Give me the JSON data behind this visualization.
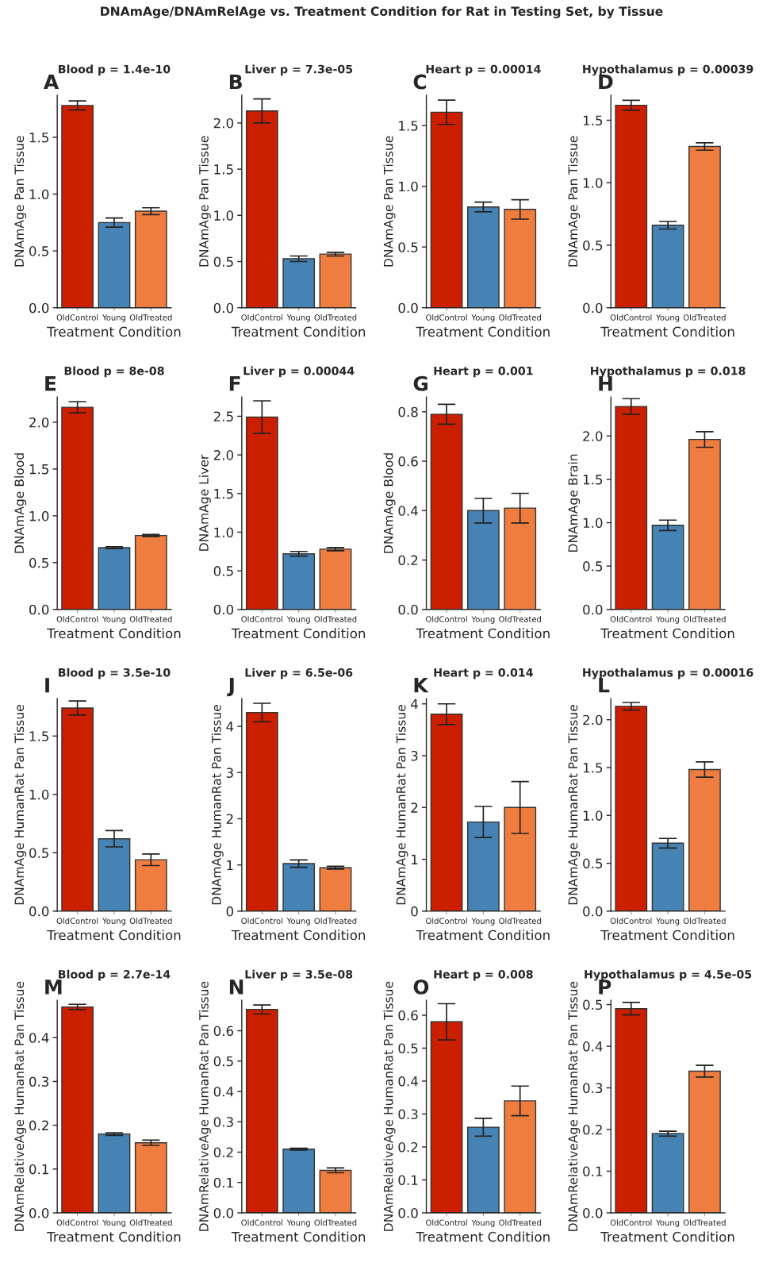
{
  "chart_data": [
    {
      "type": "bar",
      "title": "Blood p = 1.4e-10",
      "xlabel": "Treatment Condition",
      "ylabel": "DNAmAge Pan Tissue",
      "categories": [
        "OldControl",
        "Young",
        "OldTreated"
      ],
      "values": [
        1.78,
        0.75,
        0.85
      ],
      "errors": [
        0.04,
        0.04,
        0.03
      ],
      "colors": [
        "#cc1f00",
        "#4682b4",
        "#f07d40"
      ],
      "ylim": [
        0,
        1.87
      ],
      "yticks": [
        {
          "value": 0,
          "label": "0.0"
        },
        0.5,
        {
          "value": 1,
          "label": "1.0"
        },
        1.5
      ],
      "annotations": [
        "DNAmAge/DNAmRelAge vs. Treatment Condition for Rat in Testing Set, by Tissue",
        "A"
      ]
    },
    {
      "type": "bar",
      "title": "Liver p = 7.3e-05",
      "xlabel": "Treatment Condition",
      "ylabel": "DNAmAge Pan Tissue",
      "categories": [
        "OldControl",
        "Young",
        "OldTreated"
      ],
      "values": [
        2.13,
        0.53,
        0.58
      ],
      "errors": [
        0.13,
        0.03,
        0.02
      ],
      "colors": [
        "#cc1f00",
        "#4682b4",
        "#f07d40"
      ],
      "ylim": [
        0,
        2.3
      ],
      "yticks": [
        {
          "value": 0,
          "label": "0.0"
        },
        0.5,
        {
          "value": 1,
          "label": "1.0"
        },
        1.5,
        {
          "value": 2,
          "label": "2.0"
        }
      ],
      "annotations": [
        "B"
      ]
    },
    {
      "type": "bar",
      "title": "Heart p = 0.00014",
      "xlabel": "Treatment Condition",
      "ylabel": "DNAmAge Pan Tissue",
      "categories": [
        "OldControl",
        "Young",
        "OldTreated"
      ],
      "values": [
        1.61,
        0.83,
        0.81
      ],
      "errors": [
        0.1,
        0.04,
        0.08
      ],
      "colors": [
        "#cc1f00",
        "#4682b4",
        "#f07d40"
      ],
      "ylim": [
        0,
        1.75
      ],
      "yticks": [
        {
          "value": 0,
          "label": "0.0"
        },
        0.5,
        {
          "value": 1,
          "label": "1.0"
        },
        1.5
      ],
      "annotations": [
        "C"
      ]
    },
    {
      "type": "bar",
      "title": "Hypothalamus p = 0.00039",
      "xlabel": "Treatment Condition",
      "ylabel": "DNAmAge Pan Tissue",
      "categories": [
        "OldControl",
        "Young",
        "OldTreated"
      ],
      "values": [
        1.62,
        0.66,
        1.29
      ],
      "errors": [
        0.04,
        0.03,
        0.03
      ],
      "colors": [
        "#cc1f00",
        "#4682b4",
        "#f07d40"
      ],
      "ylim": [
        0,
        1.7
      ],
      "yticks": [
        {
          "value": 0,
          "label": "0.0"
        },
        0.5,
        {
          "value": 1,
          "label": "1.0"
        },
        1.5
      ],
      "annotations": [
        "D"
      ]
    },
    {
      "type": "bar",
      "title": "Blood p = 8e-08",
      "xlabel": "Treatment Condition",
      "ylabel": "DNAmAge Blood",
      "categories": [
        "OldControl",
        "Young",
        "OldTreated"
      ],
      "values": [
        2.16,
        0.66,
        0.79
      ],
      "errors": [
        0.06,
        0.01,
        0.01
      ],
      "colors": [
        "#cc1f00",
        "#4682b4",
        "#f07d40"
      ],
      "ylim": [
        0,
        2.27
      ],
      "yticks": [
        {
          "value": 0,
          "label": "0.0"
        },
        0.5,
        {
          "value": 1,
          "label": "1.0"
        },
        1.5,
        {
          "value": 2,
          "label": "2.0"
        }
      ],
      "annotations": [
        "E"
      ]
    },
    {
      "type": "bar",
      "title": "Liver p = 0.00044",
      "xlabel": "Treatment Condition",
      "ylabel": "DNAmAge Liver",
      "categories": [
        "OldControl",
        "Young",
        "OldTreated"
      ],
      "values": [
        2.49,
        0.72,
        0.78
      ],
      "errors": [
        0.21,
        0.03,
        0.02
      ],
      "colors": [
        "#cc1f00",
        "#4682b4",
        "#f07d40"
      ],
      "ylim": [
        0,
        2.75
      ],
      "yticks": [
        {
          "value": 0,
          "label": "0.0"
        },
        0.5,
        {
          "value": 1,
          "label": "1.0"
        },
        1.5,
        {
          "value": 2,
          "label": "2.0"
        },
        2.5
      ],
      "annotations": [
        "F"
      ]
    },
    {
      "type": "bar",
      "title": "Heart p = 0.001",
      "xlabel": "Treatment Condition",
      "ylabel": "DNAmAge Blood",
      "categories": [
        "OldControl",
        "Young",
        "OldTreated"
      ],
      "values": [
        0.79,
        0.4,
        0.41
      ],
      "errors": [
        0.04,
        0.05,
        0.06
      ],
      "colors": [
        "#cc1f00",
        "#4682b4",
        "#f07d40"
      ],
      "ylim": [
        0,
        0.86
      ],
      "yticks": [
        {
          "value": 0,
          "label": "0.0"
        },
        0.2,
        0.4,
        0.6,
        0.8
      ],
      "annotations": [
        "G"
      ]
    },
    {
      "type": "bar",
      "title": "Hypothalamus p = 0.018",
      "xlabel": "Treatment Condition",
      "ylabel": "DNAmAge Brain",
      "categories": [
        "OldControl",
        "Young",
        "OldTreated"
      ],
      "values": [
        2.34,
        0.97,
        1.96
      ],
      "errors": [
        0.09,
        0.06,
        0.09
      ],
      "colors": [
        "#cc1f00",
        "#4682b4",
        "#f07d40"
      ],
      "ylim": [
        0,
        2.45
      ],
      "yticks": [
        {
          "value": 0,
          "label": "0.0"
        },
        0.5,
        {
          "value": 1,
          "label": "1.0"
        },
        1.5,
        {
          "value": 2,
          "label": "2.0"
        }
      ],
      "annotations": [
        "H"
      ]
    },
    {
      "type": "bar",
      "title": "Blood p = 3.5e-10",
      "xlabel": "Treatment Condition",
      "ylabel": "DNAmAge HumanRat Pan Tissue",
      "categories": [
        "OldControl",
        "Young",
        "OldTreated"
      ],
      "values": [
        1.74,
        0.62,
        0.44
      ],
      "errors": [
        0.06,
        0.07,
        0.05
      ],
      "colors": [
        "#cc1f00",
        "#4682b4",
        "#f07d40"
      ],
      "ylim": [
        0,
        1.82
      ],
      "yticks": [
        {
          "value": 0,
          "label": "0.0"
        },
        0.5,
        {
          "value": 1,
          "label": "1.0"
        },
        1.5
      ],
      "annotations": [
        "I"
      ]
    },
    {
      "type": "bar",
      "title": "Liver p = 6.5e-06",
      "xlabel": "Treatment Condition",
      "ylabel": "DNAmAge HumanRat Pan Tissue",
      "categories": [
        "OldControl",
        "Young",
        "OldTreated"
      ],
      "values": [
        4.3,
        1.03,
        0.94
      ],
      "errors": [
        0.2,
        0.08,
        0.03
      ],
      "colors": [
        "#cc1f00",
        "#4682b4",
        "#f07d40"
      ],
      "ylim": [
        0,
        4.6
      ],
      "yticks": [
        0,
        1,
        2,
        3,
        4
      ],
      "annotations": [
        "J"
      ]
    },
    {
      "type": "bar",
      "title": "Heart p = 0.014",
      "xlabel": "Treatment Condition",
      "ylabel": "DNAmAge HumanRat Pan Tissue",
      "categories": [
        "OldControl",
        "Young",
        "OldTreated"
      ],
      "values": [
        3.8,
        1.72,
        2.0
      ],
      "errors": [
        0.2,
        0.3,
        0.5
      ],
      "colors": [
        "#cc1f00",
        "#4682b4",
        "#f07d40"
      ],
      "ylim": [
        0,
        4.1
      ],
      "yticks": [
        0,
        1,
        2,
        3,
        4
      ],
      "annotations": [
        "K"
      ]
    },
    {
      "type": "bar",
      "title": "Hypothalamus p = 0.00016",
      "xlabel": "Treatment Condition",
      "ylabel": "DNAmAge HumanRat Pan Tissue",
      "categories": [
        "OldControl",
        "Young",
        "OldTreated"
      ],
      "values": [
        2.14,
        0.71,
        1.48
      ],
      "errors": [
        0.04,
        0.05,
        0.08
      ],
      "colors": [
        "#cc1f00",
        "#4682b4",
        "#f07d40"
      ],
      "ylim": [
        0,
        2.22
      ],
      "yticks": [
        {
          "value": 0,
          "label": "0.0"
        },
        0.5,
        {
          "value": 1,
          "label": "1.0"
        },
        1.5,
        {
          "value": 2,
          "label": "2.0"
        }
      ],
      "annotations": [
        "L"
      ]
    },
    {
      "type": "bar",
      "title": "Blood p = 2.7e-14",
      "xlabel": "Treatment Condition",
      "ylabel": "DNAmRelativeAge HumanRat Pan Tissue",
      "categories": [
        "OldControl",
        "Young",
        "OldTreated"
      ],
      "values": [
        0.47,
        0.18,
        0.16
      ],
      "errors": [
        0.006,
        0.003,
        0.006
      ],
      "colors": [
        "#cc1f00",
        "#4682b4",
        "#f07d40"
      ],
      "ylim": [
        0,
        0.485
      ],
      "yticks": [
        {
          "value": 0,
          "label": "0.0"
        },
        0.1,
        0.2,
        0.3,
        0.4
      ],
      "annotations": [
        "M"
      ]
    },
    {
      "type": "bar",
      "title": "Liver p = 3.5e-08",
      "xlabel": "Treatment Condition",
      "ylabel": "DNAmRelativeAge HumanRat Pan Tissue",
      "categories": [
        "OldControl",
        "Young",
        "OldTreated"
      ],
      "values": [
        0.67,
        0.21,
        0.14
      ],
      "errors": [
        0.015,
        0.003,
        0.008
      ],
      "colors": [
        "#cc1f00",
        "#4682b4",
        "#f07d40"
      ],
      "ylim": [
        0,
        0.7
      ],
      "yticks": [
        {
          "value": 0,
          "label": "0.0"
        },
        0.1,
        0.2,
        0.3,
        0.4,
        0.5,
        0.6
      ],
      "annotations": [
        "N"
      ]
    },
    {
      "type": "bar",
      "title": "Heart p = 0.008",
      "xlabel": "Treatment Condition",
      "ylabel": "DNAmRelativeAge HumanRat Pan Tissue",
      "categories": [
        "OldControl",
        "Young",
        "OldTreated"
      ],
      "values": [
        0.58,
        0.26,
        0.34
      ],
      "errors": [
        0.055,
        0.027,
        0.045
      ],
      "colors": [
        "#cc1f00",
        "#4682b4",
        "#f07d40"
      ],
      "ylim": [
        0,
        0.645
      ],
      "yticks": [
        {
          "value": 0,
          "label": "0.0"
        },
        0.1,
        0.2,
        0.3,
        0.4,
        0.5,
        0.6
      ],
      "annotations": [
        "O"
      ]
    },
    {
      "type": "bar",
      "title": "Hypothalamus p = 4.5e-05",
      "xlabel": "Treatment Condition",
      "ylabel": "DNAmRelativeAge HumanRat Pan Tissue",
      "categories": [
        "OldControl",
        "Young",
        "OldTreated"
      ],
      "values": [
        0.49,
        0.19,
        0.34
      ],
      "errors": [
        0.015,
        0.006,
        0.014
      ],
      "colors": [
        "#cc1f00",
        "#4682b4",
        "#f07d40"
      ],
      "ylim": [
        0,
        0.51
      ],
      "yticks": [
        {
          "value": 0,
          "label": "0.0"
        },
        0.1,
        0.2,
        0.3,
        0.4,
        0.5
      ],
      "annotations": [
        "P"
      ]
    }
  ]
}
